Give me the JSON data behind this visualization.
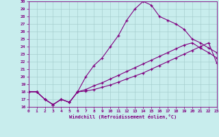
{
  "xlabel": "Windchill (Refroidissement éolien,°C)",
  "xlim": [
    0,
    23
  ],
  "ylim": [
    16,
    30
  ],
  "xticks": [
    0,
    1,
    2,
    3,
    4,
    5,
    6,
    7,
    8,
    9,
    10,
    11,
    12,
    13,
    14,
    15,
    16,
    17,
    18,
    19,
    20,
    21,
    22,
    23
  ],
  "yticks": [
    16,
    17,
    18,
    19,
    20,
    21,
    22,
    23,
    24,
    25,
    26,
    27,
    28,
    29,
    30
  ],
  "bg_color": "#c8eded",
  "line_color": "#800080",
  "grid_color": "#a0c8c8",
  "line1_x": [
    0,
    1,
    2,
    3,
    4,
    5,
    6,
    7,
    8,
    9,
    10,
    11,
    12,
    13,
    14,
    15,
    16,
    17,
    18,
    19,
    20,
    21,
    22,
    23
  ],
  "line1_y": [
    18,
    18,
    17,
    16.3,
    17,
    16.6,
    18,
    20,
    21.5,
    22.5,
    24,
    25.5,
    27.5,
    29.0,
    30,
    29.5,
    28.0,
    27.5,
    27,
    26.3,
    25,
    24.5,
    23.8,
    23.2
  ],
  "line2_x": [
    0,
    1,
    2,
    3,
    4,
    5,
    6,
    7,
    8,
    9,
    10,
    11,
    12,
    13,
    14,
    15,
    16,
    17,
    18,
    19,
    20,
    21,
    22,
    23
  ],
  "line2_y": [
    18,
    18,
    17,
    16.3,
    17,
    16.6,
    18,
    18.3,
    18.8,
    19.2,
    19.7,
    20.2,
    20.7,
    21.2,
    21.7,
    22.2,
    22.7,
    23.2,
    23.7,
    24.2,
    24.5,
    23.8,
    23.2,
    22.5
  ],
  "line3_x": [
    0,
    1,
    2,
    3,
    4,
    5,
    6,
    7,
    8,
    9,
    10,
    11,
    12,
    13,
    14,
    15,
    16,
    17,
    18,
    19,
    20,
    21,
    22,
    23
  ],
  "line3_y": [
    18,
    18,
    17,
    16.3,
    17,
    16.6,
    18,
    18.1,
    18.3,
    18.6,
    18.9,
    19.3,
    19.7,
    20.1,
    20.5,
    21.0,
    21.5,
    22.0,
    22.5,
    23.0,
    23.5,
    24.0,
    24.5,
    21.8
  ]
}
